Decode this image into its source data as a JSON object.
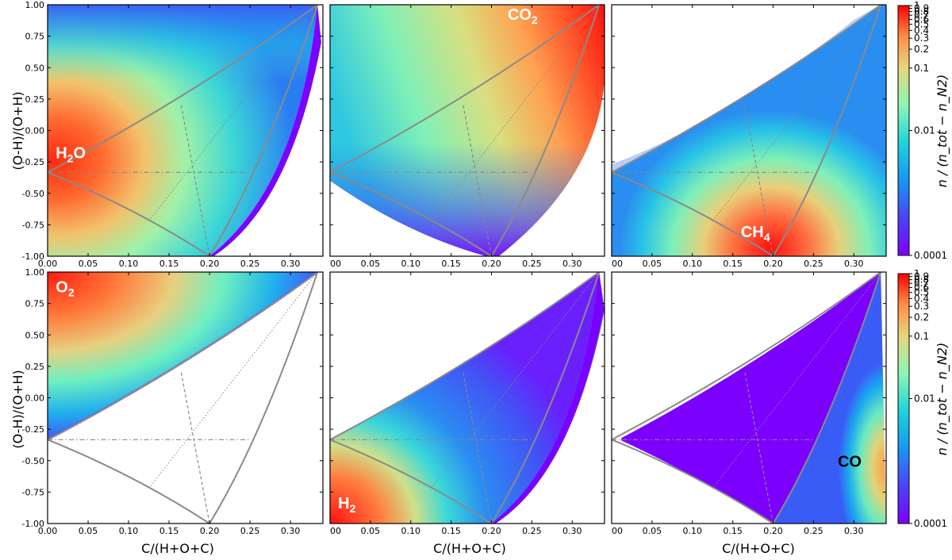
{
  "chart_data": {
    "type": "heatmap",
    "x_label": "C/(H+O+C)",
    "y_label": "(O-H)/(O+H)",
    "xlim": [
      0,
      0.34
    ],
    "ylim": [
      -1,
      1
    ],
    "x_ticks": [
      0,
      0.05,
      0.1,
      0.15,
      0.2,
      0.25,
      0.3
    ],
    "x_tick_labels_first_col": [
      "0.00",
      "0.05",
      "0.10",
      "0.15",
      "0.20",
      "0.25",
      "0.30"
    ],
    "x_tick_labels_other_cols": [
      "00",
      "0.05",
      "0.10",
      "0.15",
      "0.20",
      "0.25",
      "0.30"
    ],
    "y_ticks": [
      -1,
      -0.75,
      -0.5,
      -0.25,
      0,
      0.25,
      0.5,
      0.75,
      1
    ],
    "y_tick_labels": [
      "-1.00",
      "-0.75",
      "-0.50",
      "-0.25",
      "0.00",
      "0.25",
      "0.50",
      "0.75",
      "1.00"
    ],
    "colorbar": {
      "label": "n / (n_tot − n_N2)",
      "scale": "log",
      "range": [
        0.0001,
        1
      ],
      "ticks": [
        1,
        0.9,
        0.8,
        0.7,
        0.6,
        0.5,
        0.4,
        0.3,
        0.2,
        0.1,
        0.01,
        0.0001
      ],
      "tick_labels": [
        "1",
        "0.9",
        "0.8",
        "0.7",
        "0.6",
        "0.5",
        "0.4",
        "0.3",
        "0.2",
        "0.1",
        "0.01",
        "0.0001"
      ],
      "colormap": "rainbow"
    },
    "guide_lines": {
      "dashdot_y": -0.333,
      "dashdot_x_end": 0.25,
      "apex": [
        0.333,
        1
      ],
      "left_vertex": [
        0,
        -0.333
      ],
      "bottom_vertex": [
        0.2,
        -1
      ]
    },
    "panels": [
      {
        "species": "H₂O",
        "main": "H",
        "sub": "2",
        "post": "O",
        "label_pos": [
          0.01,
          -0.22
        ],
        "label_color": "#ffffff",
        "peak": "left-middle"
      },
      {
        "species": "CO₂",
        "main": "CO",
        "sub": "2",
        "post": "",
        "label_pos": [
          0.22,
          0.88
        ],
        "label_color": "#ffffff",
        "peak": "top-right"
      },
      {
        "species": "CH₄",
        "main": "CH",
        "sub": "4",
        "post": "",
        "label_pos": [
          0.16,
          -0.85
        ],
        "label_color": "#ffffff",
        "peak": "bottom-center"
      },
      {
        "species": "O₂",
        "main": "O",
        "sub": "2",
        "post": "",
        "label_pos": [
          0.01,
          0.84
        ],
        "label_color": "#ffffff",
        "peak": "top-left"
      },
      {
        "species": "H₂",
        "main": "H",
        "sub": "2",
        "post": "",
        "label_pos": [
          0.01,
          -0.88
        ],
        "label_color": "#ffffff",
        "peak": "bottom-left"
      },
      {
        "species": "CO",
        "main": "CO",
        "sub": "",
        "post": "",
        "label_pos": [
          0.28,
          -0.55
        ],
        "label_color": "#000000",
        "peak": "right-lower"
      }
    ]
  }
}
